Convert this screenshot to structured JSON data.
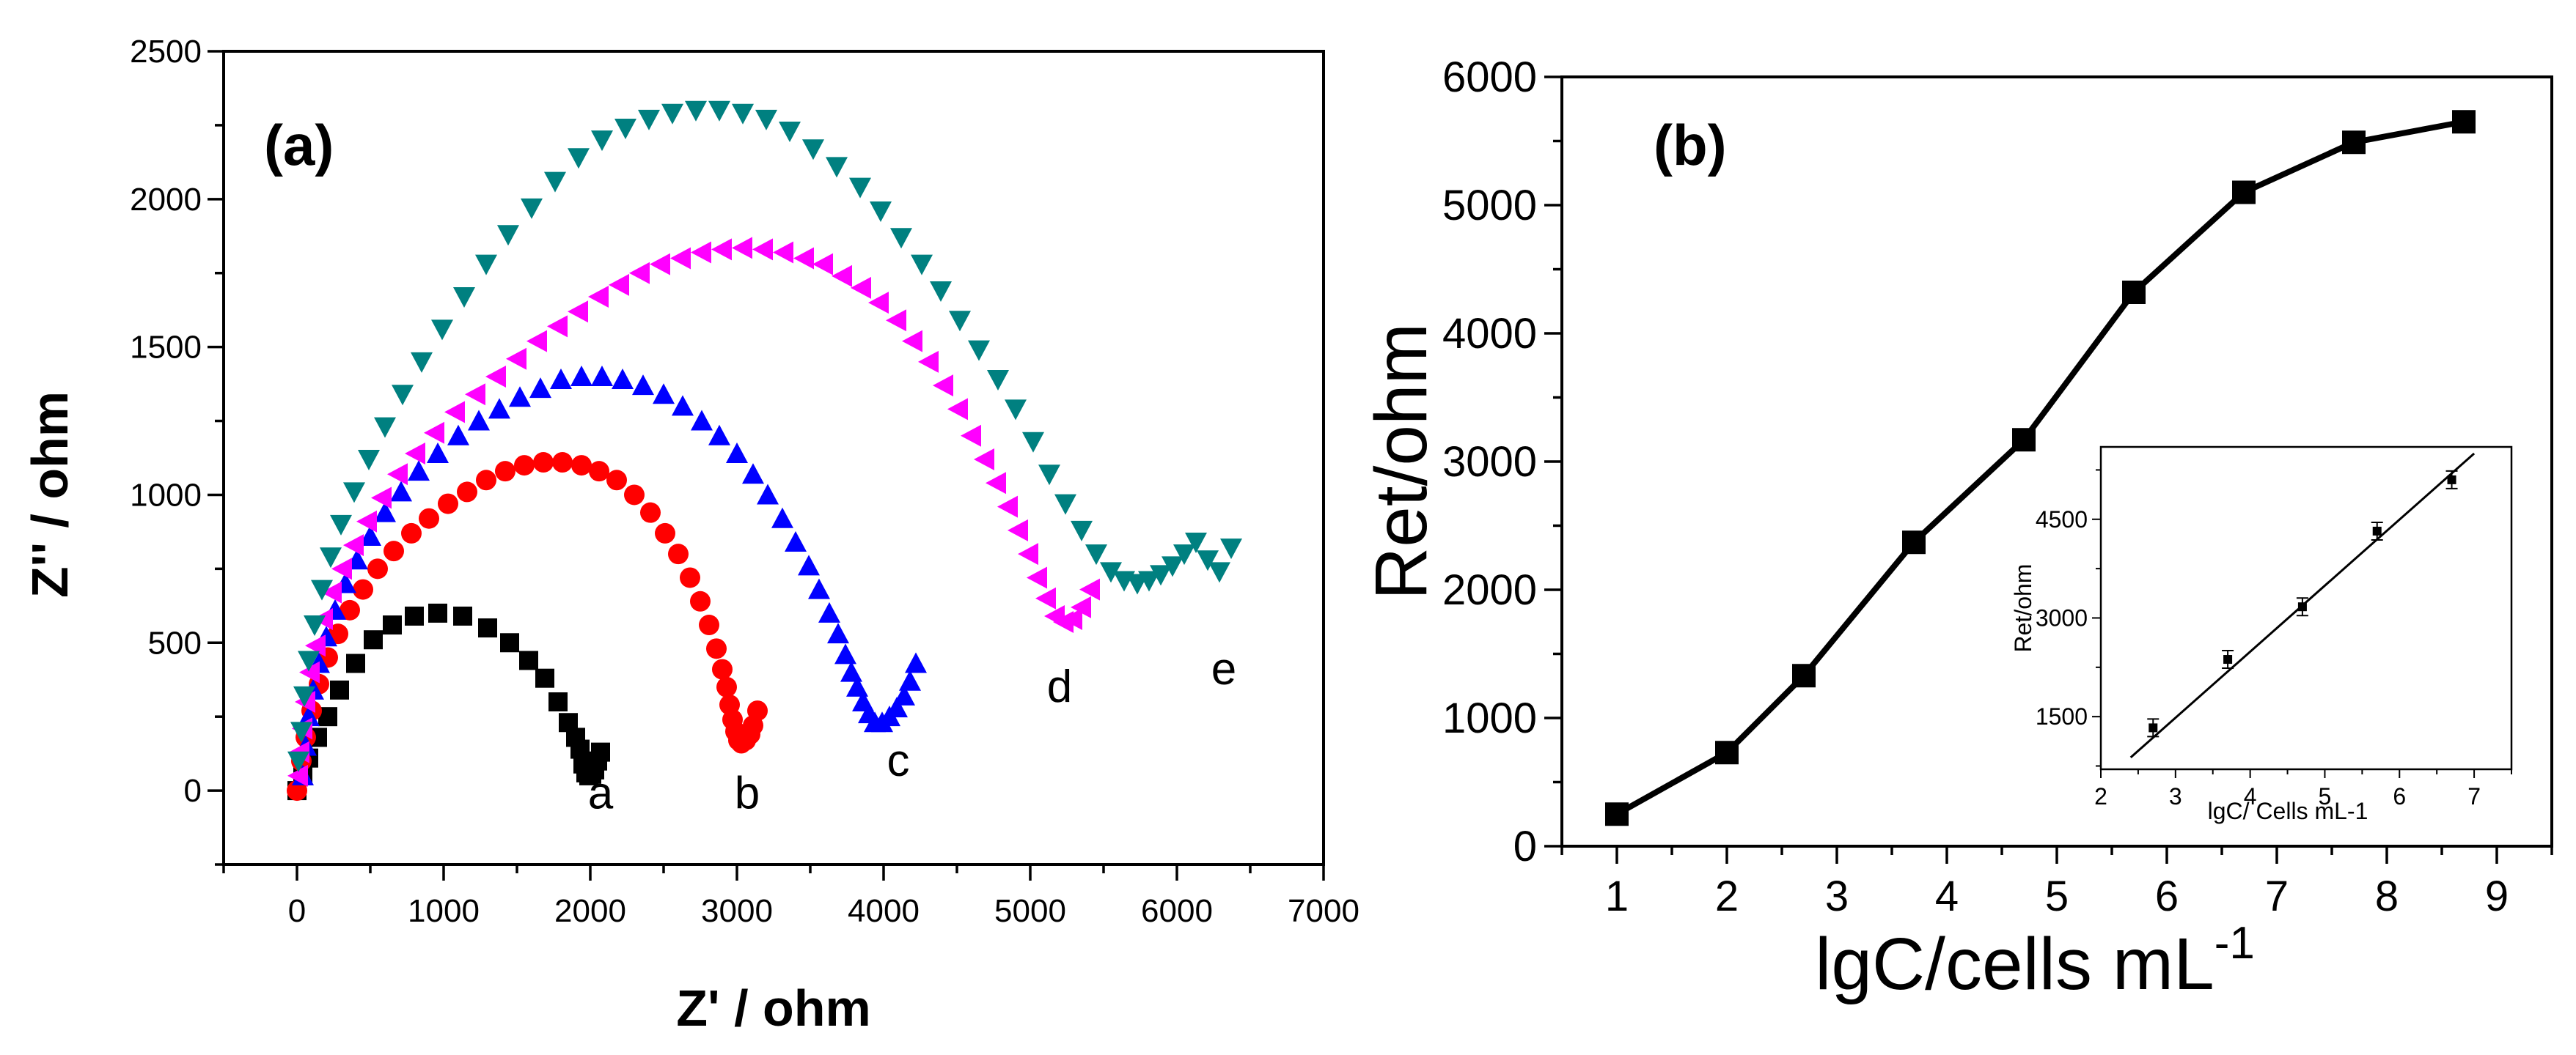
{
  "chart_data": [
    {
      "panel_label": "(a)",
      "type": "scatter",
      "xlabel": "Z' / ohm",
      "ylabel": "Z'' / ohm",
      "xlim": [
        -500,
        7000
      ],
      "ylim": [
        -250,
        2500
      ],
      "xticks": [
        "0",
        "1000",
        "2000",
        "3000",
        "4000",
        "5000",
        "6000",
        "7000"
      ],
      "yticks": [
        "0",
        "500",
        "1000",
        "1500",
        "2000",
        "2500"
      ],
      "series": [
        {
          "name": "a",
          "marker": "square",
          "color": "#000000",
          "label_pos": [
            2070,
            -60
          ],
          "x": [
            0,
            40,
            80,
            140,
            210,
            290,
            400,
            520,
            650,
            800,
            960,
            1130,
            1300,
            1450,
            1580,
            1690,
            1780,
            1850,
            1900,
            1930,
            1950,
            1970,
            1990,
            2010,
            2030,
            2050,
            2070
          ],
          "y": [
            0,
            50,
            110,
            180,
            250,
            340,
            430,
            510,
            560,
            590,
            600,
            590,
            550,
            500,
            440,
            380,
            300,
            230,
            180,
            140,
            90,
            60,
            50,
            55,
            70,
            100,
            130
          ]
        },
        {
          "name": "b",
          "marker": "circle",
          "color": "#ff0000",
          "label_pos": [
            3070,
            -60
          ],
          "x": [
            0,
            30,
            60,
            100,
            150,
            210,
            280,
            360,
            450,
            550,
            660,
            780,
            900,
            1030,
            1160,
            1290,
            1420,
            1550,
            1680,
            1810,
            1940,
            2060,
            2180,
            2300,
            2410,
            2510,
            2600,
            2680,
            2750,
            2810,
            2860,
            2900,
            2930,
            2950,
            2970,
            2990,
            3010,
            3030,
            3060,
            3090,
            3110,
            3140
          ],
          "y": [
            0,
            100,
            180,
            270,
            360,
            450,
            530,
            610,
            680,
            750,
            810,
            870,
            920,
            970,
            1010,
            1050,
            1080,
            1100,
            1110,
            1110,
            1100,
            1080,
            1050,
            1000,
            940,
            870,
            800,
            720,
            640,
            560,
            480,
            410,
            350,
            290,
            240,
            200,
            170,
            160,
            170,
            190,
            220,
            270
          ]
        },
        {
          "name": "c",
          "marker": "triangle-up",
          "color": "#0000ff",
          "label_pos": [
            4100,
            50
          ],
          "x": [
            40,
            60,
            80,
            110,
            150,
            200,
            260,
            330,
            410,
            500,
            600,
            710,
            830,
            960,
            1100,
            1240,
            1380,
            1520,
            1660,
            1800,
            1940,
            2080,
            2220,
            2360,
            2500,
            2630,
            2760,
            2880,
            3000,
            3110,
            3210,
            3310,
            3400,
            3490,
            3560,
            3630,
            3690,
            3740,
            3780,
            3820,
            3860,
            3900,
            3940,
            3990,
            4040,
            4090,
            4140,
            4180,
            4220
          ],
          "y": [
            50,
            150,
            250,
            340,
            430,
            520,
            610,
            700,
            780,
            860,
            940,
            1010,
            1080,
            1140,
            1200,
            1250,
            1290,
            1330,
            1360,
            1390,
            1400,
            1400,
            1390,
            1370,
            1340,
            1300,
            1250,
            1200,
            1140,
            1070,
            1000,
            920,
            840,
            760,
            680,
            600,
            530,
            460,
            400,
            350,
            300,
            260,
            230,
            230,
            250,
            280,
            320,
            370,
            430
          ]
        },
        {
          "name": "d",
          "marker": "triangle-left",
          "color": "#ff00ff",
          "label_pos": [
            5200,
            300
          ],
          "x": [
            10,
            20,
            40,
            60,
            90,
            130,
            180,
            240,
            310,
            390,
            480,
            580,
            690,
            810,
            940,
            1080,
            1220,
            1360,
            1500,
            1640,
            1780,
            1920,
            2060,
            2200,
            2340,
            2480,
            2620,
            2760,
            2900,
            3040,
            3180,
            3320,
            3460,
            3590,
            3720,
            3850,
            3970,
            4090,
            4200,
            4310,
            4410,
            4510,
            4600,
            4690,
            4770,
            4850,
            4920,
            4990,
            5050,
            5110,
            5170,
            5230,
            5290,
            5350,
            5410
          ],
          "y": [
            50,
            130,
            210,
            300,
            400,
            490,
            580,
            670,
            750,
            830,
            910,
            990,
            1070,
            1140,
            1210,
            1280,
            1340,
            1400,
            1460,
            1520,
            1570,
            1620,
            1670,
            1710,
            1750,
            1780,
            1800,
            1820,
            1830,
            1835,
            1830,
            1820,
            1800,
            1780,
            1740,
            1700,
            1650,
            1590,
            1520,
            1450,
            1370,
            1290,
            1200,
            1120,
            1040,
            960,
            880,
            800,
            720,
            650,
            590,
            570,
            580,
            620,
            680
          ]
        },
        {
          "name": "e",
          "marker": "triangle-down",
          "color": "#008080",
          "label_pos": [
            6320,
            360
          ],
          "x": [
            10,
            30,
            50,
            80,
            120,
            170,
            230,
            300,
            390,
            490,
            600,
            720,
            850,
            990,
            1140,
            1290,
            1440,
            1600,
            1760,
            1920,
            2080,
            2240,
            2400,
            2560,
            2720,
            2880,
            3040,
            3200,
            3360,
            3520,
            3680,
            3840,
            3980,
            4120,
            4260,
            4390,
            4520,
            4650,
            4780,
            4900,
            5020,
            5130,
            5240,
            5350,
            5450,
            5550,
            5640,
            5730,
            5810,
            5890,
            5970,
            6050,
            6130,
            6210,
            6290,
            6370
          ],
          "y": [
            100,
            200,
            320,
            440,
            560,
            680,
            790,
            900,
            1010,
            1120,
            1230,
            1340,
            1450,
            1560,
            1670,
            1780,
            1880,
            1970,
            2060,
            2140,
            2200,
            2240,
            2270,
            2290,
            2300,
            2300,
            2290,
            2270,
            2230,
            2170,
            2110,
            2040,
            1960,
            1870,
            1780,
            1690,
            1590,
            1490,
            1390,
            1290,
            1180,
            1070,
            970,
            880,
            800,
            740,
            710,
            700,
            710,
            730,
            760,
            800,
            840,
            780,
            740,
            820
          ]
        }
      ]
    },
    {
      "panel_label": "(b)",
      "type": "line",
      "xlabel_main": "lgC/cells mL",
      "xlabel_sup": "-1",
      "ylabel": "Ret/ohm",
      "xlim": [
        0.5,
        9.5
      ],
      "ylim": [
        0,
        6000
      ],
      "xticks": [
        "1",
        "2",
        "3",
        "4",
        "5",
        "6",
        "7",
        "8",
        "9"
      ],
      "yticks": [
        "0",
        "1000",
        "2000",
        "3000",
        "4000",
        "5000",
        "6000"
      ],
      "x": [
        1,
        2,
        2.7,
        3.7,
        4.7,
        5.7,
        6.7,
        7.7,
        8.7
      ],
      "y": [
        250,
        730,
        1330,
        2370,
        3170,
        4320,
        5100,
        5490,
        5650
      ],
      "inset": {
        "type": "scatter",
        "xlabel": "lgC/ Cells mL-1",
        "ylabel": "Ret/ohm",
        "xlim": [
          2,
          7.5
        ],
        "ylim": [
          700,
          5600
        ],
        "xticks": [
          "2",
          "3",
          "4",
          "5",
          "6",
          "7"
        ],
        "yticks": [
          "1500",
          "3000",
          "4500"
        ],
        "x": [
          2.7,
          3.7,
          4.7,
          5.7,
          6.7
        ],
        "y": [
          1330,
          2370,
          3170,
          4320,
          5100
        ],
        "fit_line": {
          "x": [
            2.4,
            7.0
          ],
          "y": [
            880,
            5500
          ]
        }
      }
    }
  ]
}
